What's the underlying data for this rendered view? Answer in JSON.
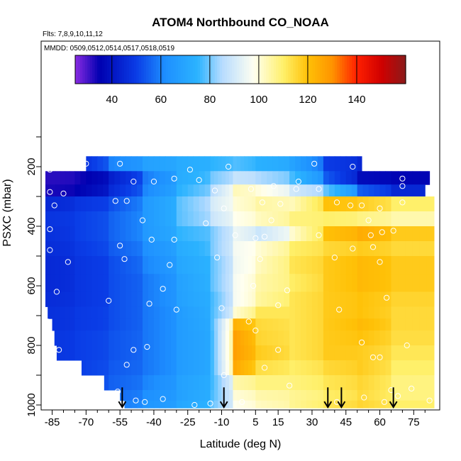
{
  "chart_data": {
    "type": "heatmap",
    "title": "ATOM4 Northbound CO_NOAA",
    "subtitle_flights": "Flts: 7,8,9,10,11,12",
    "subtitle_dates": "MMDD: 0509,0512,0514,0517,0518,0519",
    "xlabel": "Latitude (deg N)",
    "ylabel": "PSXC (mbar)",
    "xlim": [
      -88,
      84
    ],
    "ylim": [
      1010,
      0
    ],
    "x_ticks": [
      -85,
      -70,
      -55,
      -40,
      -25,
      -10,
      5,
      15,
      30,
      45,
      60,
      75
    ],
    "x_tick_labels": [
      "-85",
      "-70",
      "-55",
      "-40",
      "-25",
      "-10",
      "5",
      "15",
      "30",
      "45",
      "60",
      "75"
    ],
    "y_ticks": [
      200,
      400,
      600,
      800,
      1000
    ],
    "y_tick_labels": [
      "200",
      "400",
      "600",
      "800",
      "1000"
    ],
    "colorbar": {
      "range": [
        25,
        160
      ],
      "ticks": [
        40,
        60,
        80,
        100,
        120,
        140
      ],
      "tick_labels": [
        "40",
        "60",
        "80",
        "100",
        "120",
        "140"
      ],
      "stops": [
        {
          "v": 25,
          "c": "#8a2be2"
        },
        {
          "v": 35,
          "c": "#0000b0"
        },
        {
          "v": 50,
          "c": "#0a3ce6"
        },
        {
          "v": 62,
          "c": "#1e90ff"
        },
        {
          "v": 75,
          "c": "#2bb3ff"
        },
        {
          "v": 85,
          "c": "#b7dcff"
        },
        {
          "v": 98,
          "c": "#fffff0"
        },
        {
          "v": 110,
          "c": "#fff06a"
        },
        {
          "v": 120,
          "c": "#ffc107"
        },
        {
          "v": 130,
          "c": "#ff9400"
        },
        {
          "v": 140,
          "c": "#ff2000"
        },
        {
          "v": 150,
          "c": "#d00000"
        },
        {
          "v": 160,
          "c": "#8b1a1a"
        }
      ]
    },
    "grid_lat_breaks": [
      -88,
      -75,
      -60,
      -45,
      -30,
      -15,
      -5,
      5,
      20,
      35,
      50,
      65,
      84
    ],
    "pressure_bins": [
      {
        "p_top": 165,
        "p_bot": 215,
        "lat_min": -70,
        "lat_max": 52,
        "values": [
          40,
          45,
          60,
          68,
          72,
          75,
          78,
          74,
          70,
          50,
          45,
          40
        ]
      },
      {
        "p_top": 215,
        "p_bot": 260,
        "lat_min": -88,
        "lat_max": 82,
        "values": [
          32,
          33,
          42,
          58,
          72,
          80,
          88,
          85,
          78,
          55,
          38,
          36
        ]
      },
      {
        "p_top": 260,
        "p_bot": 300,
        "lat_min": -88,
        "lat_max": 80,
        "values": [
          33,
          35,
          45,
          60,
          74,
          85,
          103,
          100,
          90,
          80,
          55,
          45
        ]
      },
      {
        "p_top": 300,
        "p_bot": 350,
        "lat_min": -88,
        "lat_max": 84,
        "values": [
          45,
          48,
          52,
          65,
          78,
          90,
          100,
          105,
          102,
          120,
          118,
          110
        ]
      },
      {
        "p_top": 350,
        "p_bot": 400,
        "lat_min": -88,
        "lat_max": 84,
        "values": [
          48,
          50,
          55,
          65,
          78,
          88,
          98,
          102,
          108,
          110,
          108,
          104
        ]
      },
      {
        "p_top": 400,
        "p_bot": 450,
        "lat_min": -88,
        "lat_max": 84,
        "values": [
          47,
          50,
          55,
          65,
          75,
          80,
          95,
          88,
          100,
          120,
          125,
          118
        ]
      },
      {
        "p_top": 450,
        "p_bot": 500,
        "lat_min": -88,
        "lat_max": 84,
        "values": [
          46,
          49,
          54,
          62,
          72,
          80,
          96,
          100,
          110,
          115,
          118,
          115
        ]
      },
      {
        "p_top": 500,
        "p_bot": 560,
        "lat_min": -88,
        "lat_max": 84,
        "values": [
          45,
          48,
          52,
          60,
          70,
          78,
          95,
          102,
          112,
          118,
          122,
          118
        ]
      },
      {
        "p_top": 560,
        "p_bot": 620,
        "lat_min": -88,
        "lat_max": 84,
        "values": [
          45,
          48,
          52,
          58,
          68,
          78,
          96,
          104,
          110,
          118,
          122,
          118
        ]
      },
      {
        "p_top": 620,
        "p_bot": 670,
        "lat_min": -88,
        "lat_max": 84,
        "values": [
          46,
          48,
          52,
          58,
          68,
          76,
          96,
          105,
          112,
          118,
          120,
          116
        ]
      },
      {
        "p_top": 670,
        "p_bot": 710,
        "lat_min": -87,
        "lat_max": 84,
        "values": [
          47,
          49,
          52,
          58,
          66,
          76,
          100,
          112,
          112,
          118,
          120,
          115
        ]
      },
      {
        "p_top": 710,
        "p_bot": 750,
        "lat_min": -85,
        "lat_max": 84,
        "values": [
          47,
          49,
          52,
          58,
          66,
          75,
          124,
          115,
          112,
          118,
          122,
          115
        ]
      },
      {
        "p_top": 750,
        "p_bot": 800,
        "lat_min": -84,
        "lat_max": 84,
        "values": [
          48,
          50,
          53,
          58,
          66,
          74,
          128,
          116,
          112,
          118,
          120,
          114
        ]
      },
      {
        "p_top": 800,
        "p_bot": 850,
        "lat_min": -83,
        "lat_max": 84,
        "values": [
          48,
          50,
          53,
          58,
          66,
          74,
          128,
          118,
          112,
          118,
          118,
          112
        ]
      },
      {
        "p_top": 850,
        "p_bot": 900,
        "lat_min": -72,
        "lat_max": 84,
        "values": [
          48,
          50,
          54,
          58,
          66,
          74,
          126,
          114,
          110,
          115,
          118,
          110
        ]
      },
      {
        "p_top": 900,
        "p_bot": 950,
        "lat_min": -62,
        "lat_max": 84,
        "values": [
          49,
          51,
          55,
          60,
          68,
          75,
          104,
          108,
          108,
          112,
          116,
          108
        ]
      },
      {
        "p_top": 950,
        "p_bot": 985,
        "lat_min": -55,
        "lat_max": 84,
        "values": [
          50,
          52,
          56,
          62,
          68,
          76,
          100,
          104,
          106,
          110,
          115,
          108
        ]
      },
      {
        "p_top": 985,
        "p_bot": 1010,
        "lat_min": -53,
        "lat_max": 84,
        "values": [
          52,
          54,
          58,
          64,
          70,
          78,
          98,
          102,
          106,
          112,
          116,
          110
        ]
      }
    ],
    "sample_points": [
      [
        -70,
        190
      ],
      [
        -55,
        190
      ],
      [
        -24,
        210
      ],
      [
        -7,
        200
      ],
      [
        31,
        190
      ],
      [
        48,
        200
      ],
      [
        -86,
        210
      ],
      [
        -49,
        250
      ],
      [
        -40,
        250
      ],
      [
        -31,
        240
      ],
      [
        -20,
        245
      ],
      [
        24,
        250
      ],
      [
        70,
        240
      ],
      [
        -86,
        285
      ],
      [
        -80,
        290
      ],
      [
        -13,
        280
      ],
      [
        3,
        275
      ],
      [
        13,
        265
      ],
      [
        23,
        275
      ],
      [
        33,
        275
      ],
      [
        70,
        265
      ],
      [
        -84,
        330
      ],
      [
        -57,
        315
      ],
      [
        -52,
        315
      ],
      [
        -9,
        340
      ],
      [
        8,
        320
      ],
      [
        16,
        325
      ],
      [
        41,
        320
      ],
      [
        47,
        330
      ],
      [
        52,
        330
      ],
      [
        60,
        340
      ],
      [
        70,
        320
      ],
      [
        -45,
        380
      ],
      [
        -17,
        390
      ],
      [
        12,
        380
      ],
      [
        55,
        380
      ],
      [
        -86,
        410
      ],
      [
        -41,
        445
      ],
      [
        -4,
        430
      ],
      [
        9,
        435
      ],
      [
        -31,
        445
      ],
      [
        5,
        440
      ],
      [
        33,
        430
      ],
      [
        56,
        430
      ],
      [
        61,
        420
      ],
      [
        66,
        415
      ],
      [
        -86,
        480
      ],
      [
        -55,
        465
      ],
      [
        48,
        475
      ],
      [
        57,
        470
      ],
      [
        -78,
        520
      ],
      [
        -53,
        510
      ],
      [
        -33,
        530
      ],
      [
        -12,
        505
      ],
      [
        7,
        510
      ],
      [
        40,
        505
      ],
      [
        60,
        520
      ],
      [
        -83,
        620
      ],
      [
        -36,
        610
      ],
      [
        19,
        615
      ],
      [
        4,
        600
      ],
      [
        -87,
        720
      ],
      [
        -60,
        650
      ],
      [
        -42,
        660
      ],
      [
        -30,
        680
      ],
      [
        -10,
        675
      ],
      [
        15,
        665
      ],
      [
        42,
        680
      ],
      [
        63,
        640
      ],
      [
        -82,
        815
      ],
      [
        -49,
        815
      ],
      [
        -43,
        805
      ],
      [
        2,
        720
      ],
      [
        5,
        750
      ],
      [
        9,
        875
      ],
      [
        15,
        815
      ],
      [
        52,
        790
      ],
      [
        57,
        840
      ],
      [
        60,
        840
      ],
      [
        72,
        800
      ],
      [
        -52,
        865
      ],
      [
        -9,
        900
      ],
      [
        -56,
        955
      ],
      [
        -48,
        985
      ],
      [
        -44,
        990
      ],
      [
        -36,
        980
      ],
      [
        -22,
        1000
      ],
      [
        -15,
        995
      ],
      [
        -1,
        990
      ],
      [
        20,
        935
      ],
      [
        41,
        990
      ],
      [
        53,
        975
      ],
      [
        62,
        990
      ],
      [
        65,
        950
      ],
      [
        68,
        970
      ],
      [
        74,
        945
      ],
      [
        82,
        985
      ]
    ],
    "arrows_lat": [
      -54,
      -9,
      37,
      43,
      66
    ],
    "arrow_pressure": [
      960,
      1005
    ]
  }
}
